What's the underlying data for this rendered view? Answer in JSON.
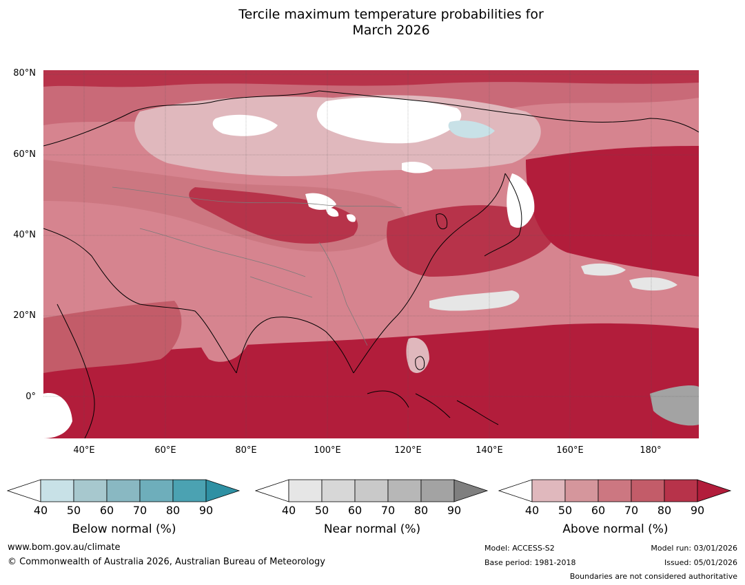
{
  "title_line1": "Tercile maximum temperature probabilities for",
  "title_line2": "March 2026",
  "lat_labels": [
    "80°N",
    "60°N",
    "40°N",
    "20°N",
    "0°"
  ],
  "lon_labels": [
    "40°E",
    "60°E",
    "80°E",
    "100°E",
    "120°E",
    "140°E",
    "160°E",
    "180°"
  ],
  "legends": [
    {
      "caption": "Below normal (%)",
      "ticks": [
        "40",
        "50",
        "60",
        "70",
        "80",
        "90"
      ],
      "colors": [
        "#ffffff",
        "#c8e1e7",
        "#a7c8ce",
        "#89b8c2",
        "#6eaebb",
        "#4ba2b2",
        "#2e90a3"
      ]
    },
    {
      "caption": "Near normal (%)",
      "ticks": [
        "40",
        "50",
        "60",
        "70",
        "80",
        "90"
      ],
      "colors": [
        "#ffffff",
        "#e6e6e6",
        "#d7d7d7",
        "#c9c9c9",
        "#b7b7b7",
        "#a3a3a3",
        "#7f7f7f"
      ]
    },
    {
      "caption": "Above normal (%)",
      "ticks": [
        "40",
        "50",
        "60",
        "70",
        "80",
        "90"
      ],
      "colors": [
        "#ffffff",
        "#e0b8bd",
        "#d5969c",
        "#cc7781",
        "#c35c69",
        "#b7334a",
        "#b21d3b"
      ]
    }
  ],
  "footer": {
    "website": "www.bom.gov.au/climate",
    "copyright": "© Commonwealth of Australia 2026, Australian Bureau of Meteorology",
    "model": "Model: ACCESS-S2",
    "base_period": "Base period: 1981-2018",
    "model_run": "Model run: 03/01/2026",
    "issued": "Issued: 05/01/2026",
    "boundaries": "Boundaries are not considered authoritative"
  }
}
